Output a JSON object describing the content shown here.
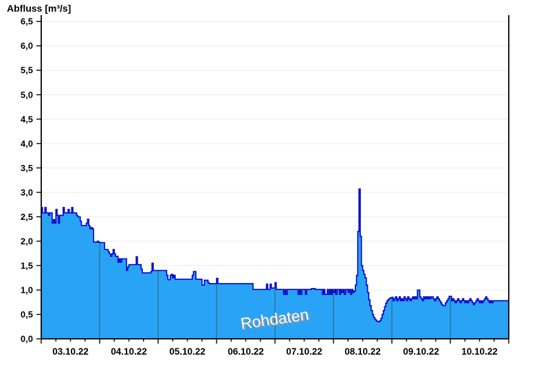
{
  "title": "Abfluss [m³/s]",
  "watermark": "Rohdaten",
  "colors": {
    "area_fill": "#29a3f6",
    "area_line": "#0000cc",
    "day_line": "#336a80",
    "h_grid": "#ececec",
    "axis": "#000000",
    "label": "#000000",
    "watermark_text": "#ffffff",
    "watermark_shadow": "#999999"
  },
  "chart_data": {
    "type": "area",
    "title": "Abfluss [m³/s]",
    "ylabel": "Abfluss [m³/s]",
    "unit": "m³/s",
    "ylim": [
      0,
      6.5
    ],
    "y_tick_step": 0.5,
    "y_tick_labels": [
      "0,0",
      "0,5",
      "1,0",
      "1,5",
      "2,0",
      "2,5",
      "3,0",
      "3,5",
      "4,0",
      "4,5",
      "5,0",
      "5,5",
      "6,0",
      "6,5"
    ],
    "x_start": "03.10.22 00:00",
    "x_end": "11.10.22 00:00",
    "x_day_labels": [
      "03.10.22",
      "04.10.22",
      "05.10.22",
      "06.10.22",
      "07.10.22",
      "08.10.22",
      "09.10.22",
      "10.10.22"
    ],
    "x_minor_tick_hours": 6,
    "interval_hours": 0.5,
    "grid": "horizontal gridlines every 0.5; vertical day separators visible inside area only",
    "legend": "none",
    "watermark": "Rohdaten",
    "values": [
      2.69,
      2.58,
      2.58,
      2.69,
      2.58,
      2.58,
      2.53,
      2.58,
      2.58,
      2.37,
      2.44,
      2.37,
      2.65,
      2.53,
      2.37,
      2.53,
      2.53,
      2.53,
      2.69,
      2.58,
      2.58,
      2.58,
      2.65,
      2.58,
      2.58,
      2.69,
      2.58,
      2.58,
      2.58,
      2.53,
      2.5,
      2.5,
      2.41,
      2.32,
      2.32,
      2.32,
      2.32,
      2.37,
      2.45,
      2.32,
      2.25,
      2.28,
      2.25,
      1.98,
      1.98,
      1.98,
      2.0,
      1.98,
      1.97,
      1.97,
      1.97,
      1.97,
      1.83,
      1.83,
      1.83,
      1.78,
      1.74,
      1.69,
      1.74,
      1.83,
      1.74,
      1.69,
      1.69,
      1.57,
      1.64,
      1.57,
      1.64,
      1.64,
      1.64,
      1.64,
      1.4,
      1.47,
      1.52,
      1.52,
      1.52,
      1.52,
      1.52,
      1.52,
      1.68,
      1.52,
      1.52,
      1.52,
      1.43,
      1.35,
      1.35,
      1.35,
      1.35,
      1.35,
      1.35,
      1.35,
      1.38,
      1.55,
      1.4,
      1.4,
      1.4,
      1.4,
      1.4,
      1.4,
      1.4,
      1.4,
      1.4,
      1.4,
      1.4,
      1.3,
      1.21,
      1.21,
      1.3,
      1.32,
      1.25,
      1.3,
      1.22,
      1.22,
      1.22,
      1.22,
      1.22,
      1.22,
      1.22,
      1.22,
      1.22,
      1.22,
      1.22,
      1.22,
      1.22,
      1.22,
      1.3,
      1.38,
      1.38,
      1.22,
      1.22,
      1.22,
      1.22,
      1.22,
      1.1,
      1.1,
      1.2,
      1.2,
      1.2,
      1.15,
      1.13,
      1.13,
      1.13,
      1.13,
      1.13,
      1.13,
      1.24,
      1.13,
      1.13,
      1.13,
      1.13,
      1.13,
      1.13,
      1.13,
      1.13,
      1.13,
      1.13,
      1.13,
      1.13,
      1.13,
      1.13,
      1.13,
      1.13,
      1.13,
      1.13,
      1.13,
      1.13,
      1.13,
      1.13,
      1.13,
      1.13,
      1.13,
      1.13,
      1.13,
      1.13,
      1.13,
      1.01,
      1.01,
      1.01,
      1.01,
      1.01,
      1.01,
      1.01,
      1.01,
      1.01,
      1.01,
      1.01,
      1.12,
      1.01,
      1.01,
      1.12,
      1.04,
      1.04,
      1.04,
      1.15,
      1.01,
      1.01,
      1.01,
      1.01,
      1.01,
      1.01,
      0.91,
      1.01,
      0.91,
      1.01,
      1.01,
      1.01,
      1.01,
      1.01,
      1.01,
      1.01,
      1.01,
      1.01,
      0.91,
      1.01,
      0.91,
      1.01,
      1.01,
      1.01,
      0.91,
      1.01,
      1.01,
      1.01,
      1.01,
      1.03,
      1.03,
      1.03,
      1.01,
      1.01,
      1.01,
      1.01,
      1.01,
      1.01,
      0.91,
      1.01,
      0.91,
      0.91,
      1.01,
      0.91,
      1.01,
      0.91,
      1.01,
      0.95,
      1.01,
      0.91,
      1.01,
      1.01,
      0.91,
      1.01,
      0.95,
      1.01,
      0.91,
      1.01,
      1.01,
      0.95,
      1.01,
      0.91,
      1.01,
      0.95,
      0.98,
      1.1,
      1.3,
      2.2,
      3.07,
      2.1,
      1.5,
      1.4,
      1.32,
      1.25,
      1.1,
      0.95,
      0.8,
      0.68,
      0.58,
      0.5,
      0.44,
      0.4,
      0.37,
      0.35,
      0.35,
      0.37,
      0.42,
      0.5,
      0.58,
      0.66,
      0.73,
      0.78,
      0.81,
      0.83,
      0.84,
      0.85,
      0.78,
      0.82,
      0.86,
      0.78,
      0.82,
      0.86,
      0.78,
      0.82,
      0.78,
      0.86,
      0.82,
      0.78,
      0.86,
      0.82,
      0.78,
      0.82,
      0.86,
      0.82,
      0.86,
      0.82,
      1.0,
      1.0,
      0.86,
      0.82,
      0.78,
      0.86,
      0.82,
      0.86,
      0.82,
      0.86,
      0.82,
      0.86,
      0.86,
      0.82,
      0.78,
      0.82,
      0.86,
      0.82,
      0.78,
      0.74,
      0.7,
      0.68,
      0.68,
      0.74,
      0.78,
      0.82,
      0.87,
      0.87,
      0.78,
      0.82,
      0.78,
      0.74,
      0.78,
      0.82,
      0.78,
      0.74,
      0.78,
      0.82,
      0.78,
      0.74,
      0.78,
      0.74,
      0.78,
      0.82,
      0.78,
      0.74,
      0.7,
      0.74,
      0.78,
      0.82,
      0.78,
      0.74,
      0.78,
      0.74,
      0.78,
      0.82,
      0.86,
      0.82,
      0.78,
      0.74,
      0.78,
      0.74,
      0.78,
      0.78,
      0.78,
      0.78,
      0.78,
      0.78,
      0.78,
      0.78,
      0.78,
      0.78,
      0.78,
      0.78,
      0.78
    ]
  }
}
